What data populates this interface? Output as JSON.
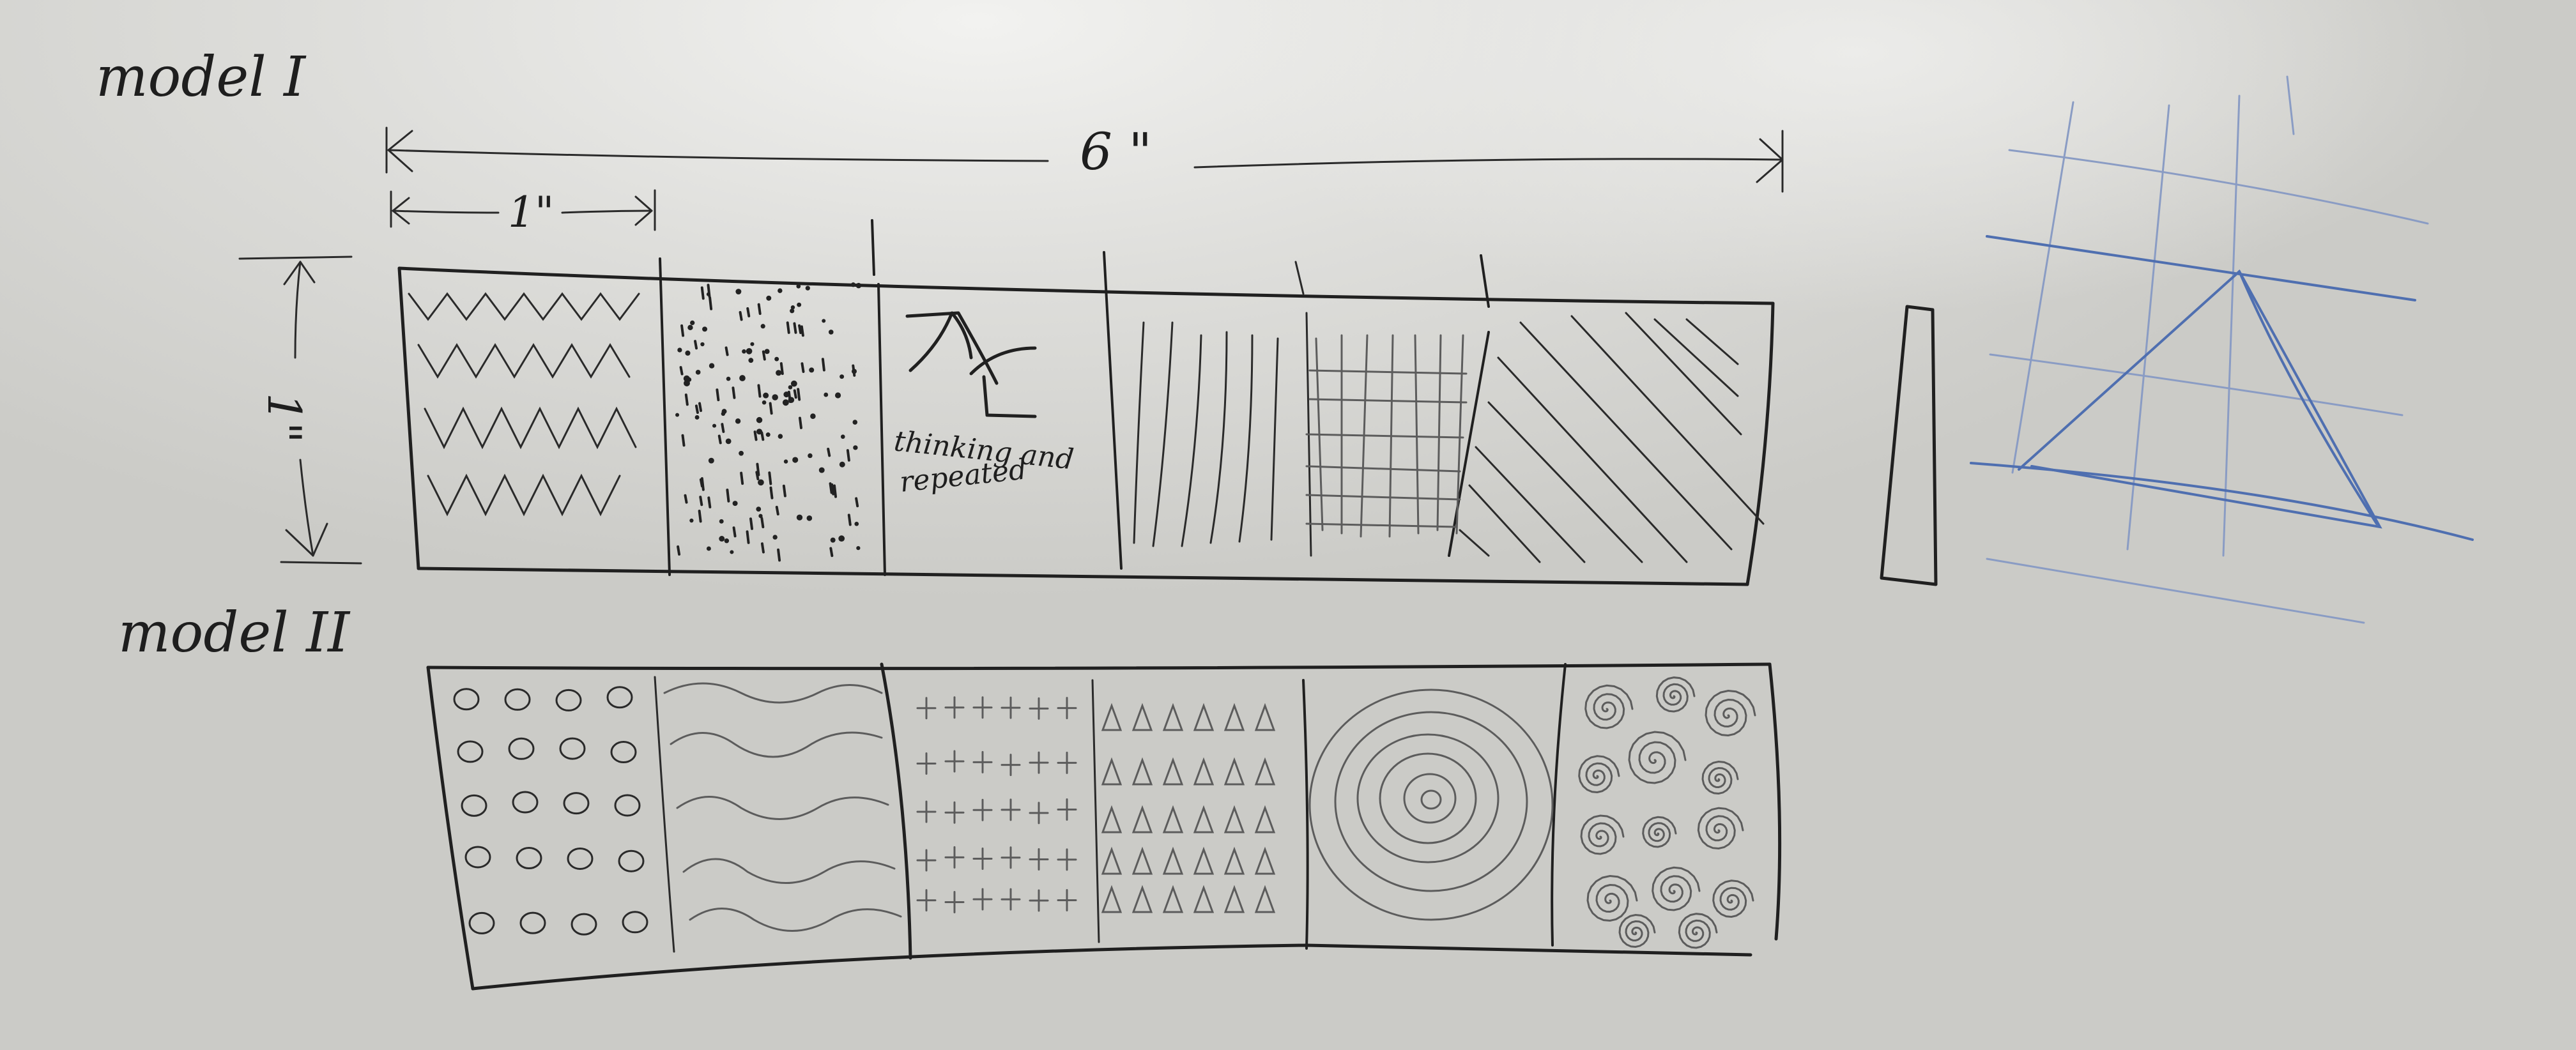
{
  "labels": {
    "model_1": "model I",
    "model_2": "model II",
    "width_dim": "6 \"",
    "tile_dim": "1\"",
    "height_dim": "1\"",
    "tile_note_line1": "thinking and",
    "tile_note_line2": "repeated"
  },
  "colors": {
    "board": "#d6d6d2",
    "marker_black": "#202020",
    "marker_blue": "#4f6fb0"
  },
  "model_1_tiles": [
    "zigzag",
    "dots",
    "wave-symbol",
    "vertical-lines",
    "grid",
    "diagonal-lines"
  ],
  "model_2_tiles": [
    "circles",
    "waves",
    "plus-signs",
    "triangles",
    "concentric-circles",
    "spirals"
  ]
}
